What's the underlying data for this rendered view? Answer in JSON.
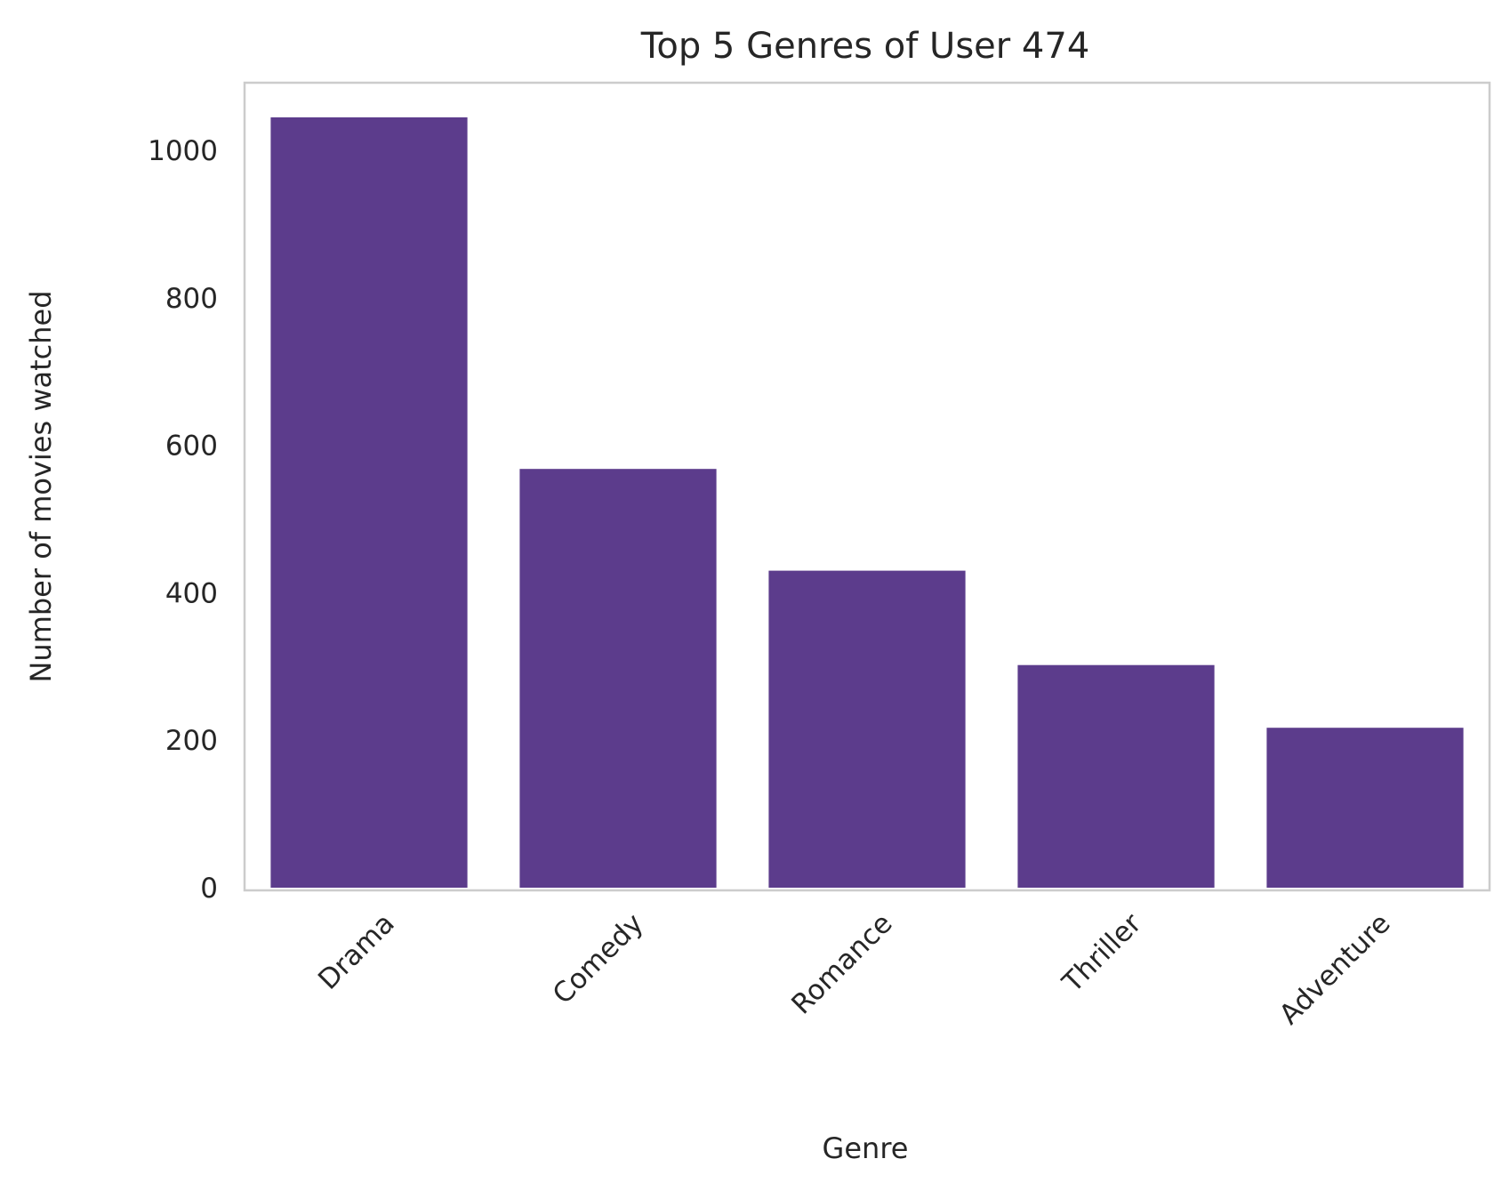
{
  "chart_data": {
    "type": "bar",
    "title": "Top 5 Genres of User 474",
    "xlabel": "Genre",
    "ylabel": "Number of movies watched",
    "categories": [
      "Drama",
      "Comedy",
      "Romance",
      "Thriller",
      "Adventure"
    ],
    "values": [
      1045,
      568,
      430,
      302,
      217
    ],
    "yticks": [
      0,
      200,
      400,
      600,
      800,
      1000
    ],
    "ylim": [
      0,
      1100
    ],
    "bar_color": "#5c3c8c",
    "grid": false,
    "legend": "none"
  }
}
